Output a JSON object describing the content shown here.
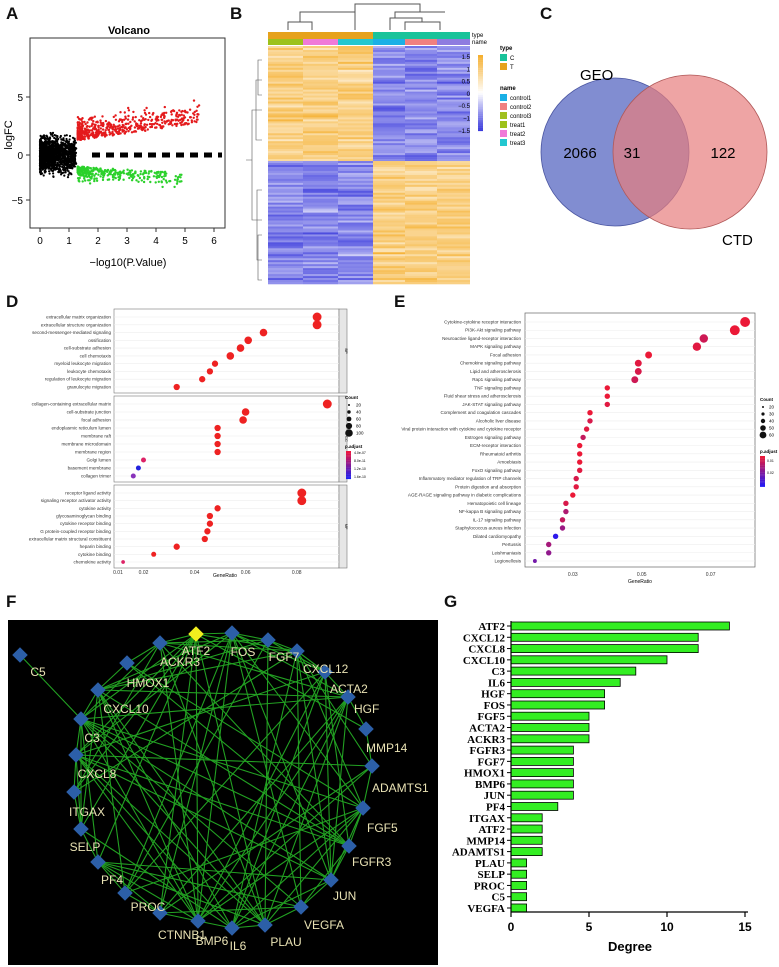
{
  "panels": {
    "a": "A",
    "b": "B",
    "c": "C",
    "d": "D",
    "e": "E",
    "f": "F",
    "g": "G"
  },
  "volcano": {
    "title": "Volcano",
    "xlabel": "−log10(P.Value)",
    "ylabel": "logFC",
    "xticks": [
      "0",
      "1",
      "2",
      "3",
      "4",
      "5",
      "6"
    ],
    "yticks": [
      "5",
      "0",
      "−5"
    ],
    "colors": {
      "up": "#e41a1c",
      "down": "#2bd12b",
      "ns": "#000000"
    }
  },
  "heatmap": {
    "legend_type_title": "type",
    "legend_name_title": "name",
    "row_labels": [
      "type",
      "name"
    ],
    "type_items": [
      {
        "label": "C",
        "color": "#19c39a"
      },
      {
        "label": "T",
        "color": "#e6a21c"
      }
    ],
    "name_items": [
      {
        "label": "control1",
        "color": "#1ab0e6"
      },
      {
        "label": "control2",
        "color": "#f08080"
      },
      {
        "label": "control3",
        "color": "#a0c020"
      },
      {
        "label": "treat1",
        "color": "#9dc21a"
      },
      {
        "label": "treat2",
        "color": "#f07ad8"
      },
      {
        "label": "treat3",
        "color": "#22c7d0"
      }
    ],
    "scale_ticks": [
      "1.5",
      "1",
      "0.5",
      "0",
      "−0.5",
      "−1",
      "−1.5"
    ],
    "colors": {
      "high": "#f5b030",
      "mid": "#ffffff",
      "low": "#3a3adc"
    }
  },
  "venn": {
    "left_label": "GEO",
    "right_label": "CTD",
    "left_only": "2066",
    "overlap": "31",
    "right_only": "122",
    "colors": {
      "left": "#6b79c9",
      "right": "#e77d7d",
      "overlap": "#9a5a78"
    }
  },
  "go": {
    "xlabel": "GeneRatio",
    "xticks": [
      "0.01",
      "0.02",
      "0.04",
      "0.06",
      "0.08"
    ],
    "facets": [
      "BP",
      "CC",
      "MF"
    ],
    "count_title": "Count",
    "count_ticks": [
      "20",
      "40",
      "60",
      "80",
      "100"
    ],
    "padj_title": "p.adjust",
    "padj_ticks": [
      "4.0e-07",
      "8.0e-11",
      "1.2e-10",
      "1.6e-10"
    ],
    "terms": [
      {
        "label": "extracellular matrix organization",
        "ratio": 0.088,
        "facet": 0,
        "size": 5
      },
      {
        "label": "extracellular structure organization",
        "ratio": 0.088,
        "facet": 0,
        "size": 5
      },
      {
        "label": "second-messenger-mediated signaling",
        "ratio": 0.067,
        "facet": 0,
        "size": 4
      },
      {
        "label": "ossification",
        "ratio": 0.061,
        "facet": 0,
        "size": 4
      },
      {
        "label": "cell-substrate adhesion",
        "ratio": 0.058,
        "facet": 0,
        "size": 4
      },
      {
        "label": "cell chemotaxis",
        "ratio": 0.054,
        "facet": 0,
        "size": 4
      },
      {
        "label": "myeloid leukocyte migration",
        "ratio": 0.048,
        "facet": 0,
        "size": 3
      },
      {
        "label": "leukocyte chemotaxis",
        "ratio": 0.046,
        "facet": 0,
        "size": 3
      },
      {
        "label": "regulation of leukocyte migration",
        "ratio": 0.043,
        "facet": 0,
        "size": 3
      },
      {
        "label": "granulocyte migration",
        "ratio": 0.033,
        "facet": 0,
        "size": 3
      },
      {
        "label": "collagen-containing extracellular matrix",
        "ratio": 0.092,
        "facet": 1,
        "size": 5
      },
      {
        "label": "cell-substrate junction",
        "ratio": 0.06,
        "facet": 1,
        "size": 4
      },
      {
        "label": "focal adhesion",
        "ratio": 0.059,
        "facet": 1,
        "size": 4
      },
      {
        "label": "endoplasmic reticulum lumen",
        "ratio": 0.049,
        "facet": 1,
        "size": 3
      },
      {
        "label": "membrane raft",
        "ratio": 0.049,
        "facet": 1,
        "size": 3
      },
      {
        "label": "membrane microdomain",
        "ratio": 0.049,
        "facet": 1,
        "size": 3
      },
      {
        "label": "membrane region",
        "ratio": 0.049,
        "facet": 1,
        "size": 3
      },
      {
        "label": "Golgi lumen",
        "ratio": 0.02,
        "facet": 1,
        "size": 2
      },
      {
        "label": "basement membrane",
        "ratio": 0.018,
        "facet": 1,
        "size": 2
      },
      {
        "label": "collagen trimer",
        "ratio": 0.016,
        "facet": 1,
        "size": 2
      },
      {
        "label": "receptor ligand activity",
        "ratio": 0.082,
        "facet": 2,
        "size": 5
      },
      {
        "label": "signaling receptor activator activity",
        "ratio": 0.082,
        "facet": 2,
        "size": 5
      },
      {
        "label": "cytokine activity",
        "ratio": 0.049,
        "facet": 2,
        "size": 3
      },
      {
        "label": "glycosaminoglycan binding",
        "ratio": 0.046,
        "facet": 2,
        "size": 3
      },
      {
        "label": "cytokine receptor binding",
        "ratio": 0.046,
        "facet": 2,
        "size": 3
      },
      {
        "label": "G protein-coupled receptor binding",
        "ratio": 0.045,
        "facet": 2,
        "size": 3
      },
      {
        "label": "extracellular matrix structural constituent",
        "ratio": 0.044,
        "facet": 2,
        "size": 3
      },
      {
        "label": "heparin binding",
        "ratio": 0.033,
        "facet": 2,
        "size": 3
      },
      {
        "label": "cytokine binding",
        "ratio": 0.024,
        "facet": 2,
        "size": 2
      },
      {
        "label": "chemokine activity",
        "ratio": 0.012,
        "facet": 2,
        "size": 1
      }
    ]
  },
  "kegg": {
    "xlabel": "GeneRatio",
    "xticks": [
      "0.03",
      "0.05",
      "0.07"
    ],
    "count_title": "Count",
    "count_ticks": [
      "20",
      "30",
      "40",
      "50",
      "60"
    ],
    "padj_title": "p.adjust",
    "padj_ticks": [
      "0.01",
      "0.02"
    ],
    "terms": [
      {
        "label": "Cytokine-cytokine receptor interaction",
        "ratio": 0.08,
        "size": 5,
        "c": 0.0
      },
      {
        "label": "PI3K-Akt signaling pathway",
        "ratio": 0.077,
        "size": 5,
        "c": 0.0
      },
      {
        "label": "Neuroactive ligand-receptor interaction",
        "ratio": 0.068,
        "size": 4,
        "c": 0.15
      },
      {
        "label": "MAPK signaling pathway",
        "ratio": 0.066,
        "size": 4,
        "c": 0.05
      },
      {
        "label": "Focal adhesion",
        "ratio": 0.052,
        "size": 3,
        "c": 0.0
      },
      {
        "label": "Chemokine signaling pathway",
        "ratio": 0.049,
        "size": 3,
        "c": 0.05
      },
      {
        "label": "Lipid and atherosclerosis",
        "ratio": 0.049,
        "size": 3,
        "c": 0.1
      },
      {
        "label": "Rap1 signaling pathway",
        "ratio": 0.048,
        "size": 3,
        "c": 0.15
      },
      {
        "label": "TNF signaling pathway",
        "ratio": 0.04,
        "size": 2,
        "c": 0.0
      },
      {
        "label": "Fluid shear stress and atherosclerosis",
        "ratio": 0.04,
        "size": 2,
        "c": 0.0
      },
      {
        "label": "JAK-STAT signaling pathway",
        "ratio": 0.04,
        "size": 2,
        "c": 0.05
      },
      {
        "label": "Complement and coagulation cascades",
        "ratio": 0.035,
        "size": 2,
        "c": 0.0
      },
      {
        "label": "Alcoholic liver disease",
        "ratio": 0.035,
        "size": 2,
        "c": 0.1
      },
      {
        "label": "Viral protein interaction with cytokine and cytokine receptor",
        "ratio": 0.034,
        "size": 2,
        "c": 0.05
      },
      {
        "label": "Estrogen signaling pathway",
        "ratio": 0.033,
        "size": 2,
        "c": 0.2
      },
      {
        "label": "ECM-receptor interaction",
        "ratio": 0.032,
        "size": 2,
        "c": 0.0
      },
      {
        "label": "Rheumatoid arthritis",
        "ratio": 0.032,
        "size": 2,
        "c": 0.0
      },
      {
        "label": "Amoebiasis",
        "ratio": 0.032,
        "size": 2,
        "c": 0.0
      },
      {
        "label": "FoxO signaling pathway",
        "ratio": 0.032,
        "size": 2,
        "c": 0.05
      },
      {
        "label": "Inflammatory mediator regulation of TRP channels",
        "ratio": 0.031,
        "size": 2,
        "c": 0.1
      },
      {
        "label": "Protein digestion and absorption",
        "ratio": 0.031,
        "size": 2,
        "c": 0.05
      },
      {
        "label": "AGE-RAGE signaling pathway in diabetic complications",
        "ratio": 0.03,
        "size": 2,
        "c": 0.0
      },
      {
        "label": "Hematopoietic cell lineage",
        "ratio": 0.028,
        "size": 2,
        "c": 0.1
      },
      {
        "label": "NF-kappa B signaling pathway",
        "ratio": 0.028,
        "size": 2,
        "c": 0.3
      },
      {
        "label": "IL-17 signaling pathway",
        "ratio": 0.027,
        "size": 2,
        "c": 0.2
      },
      {
        "label": "Staphylococcus aureus infection",
        "ratio": 0.027,
        "size": 2,
        "c": 0.4
      },
      {
        "label": "Dilated cardiomyopathy",
        "ratio": 0.025,
        "size": 2,
        "c": 0.95
      },
      {
        "label": "Pertussis",
        "ratio": 0.023,
        "size": 2,
        "c": 0.35
      },
      {
        "label": "Leishmaniasis",
        "ratio": 0.023,
        "size": 2,
        "c": 0.45
      },
      {
        "label": "Legionellosis",
        "ratio": 0.019,
        "size": 1,
        "c": 0.6
      }
    ]
  },
  "network": {
    "nodes": [
      "ATF2",
      "FOS",
      "FGF7",
      "CXCL12",
      "ACTA2",
      "HGF",
      "MMP14",
      "ADAMTS1",
      "FGF5",
      "FGFR3",
      "JUN",
      "VEGFA",
      "PLAU",
      "IL6",
      "BMP6",
      "CTNNB1",
      "PROC",
      "PF4",
      "SELP",
      "ITGAX",
      "CXCL8",
      "C3",
      "CXCL10",
      "HMOX1",
      "ACKR3",
      "C5"
    ],
    "highlight": "ATF2",
    "colors": {
      "bg": "#000000",
      "edge": "#22a022",
      "node": "#2c5fa8",
      "highlight": "#f2ee1e",
      "label": "#e9e2b4"
    }
  },
  "chart_data": {
    "type": "bar",
    "orientation": "horizontal",
    "title": "",
    "xlabel": "Degree",
    "ylabel": "",
    "xlim": [
      0,
      15
    ],
    "xticks": [
      "0",
      "5",
      "10",
      "15"
    ],
    "categories": [
      "ATF2",
      "CXCL12",
      "CXCL8",
      "CXCL10",
      "C3",
      "IL6",
      "HGF",
      "FOS",
      "FGF5",
      "ACTA2",
      "ACKR3",
      "FGFR3",
      "FGF7",
      "HMOX1",
      "BMP6",
      "JUN",
      "PF4",
      "ITGAX",
      "ATF2",
      "MMP14",
      "ADAMTS1",
      "PLAU",
      "SELP",
      "PROC",
      "C5",
      "VEGFA"
    ],
    "values": [
      14,
      12,
      12,
      10,
      8,
      7,
      6,
      6,
      5,
      5,
      5,
      4,
      4,
      4,
      4,
      4,
      3,
      2,
      2,
      2,
      2,
      1,
      1,
      1,
      1,
      1
    ],
    "bar_color": "#33ee22"
  }
}
